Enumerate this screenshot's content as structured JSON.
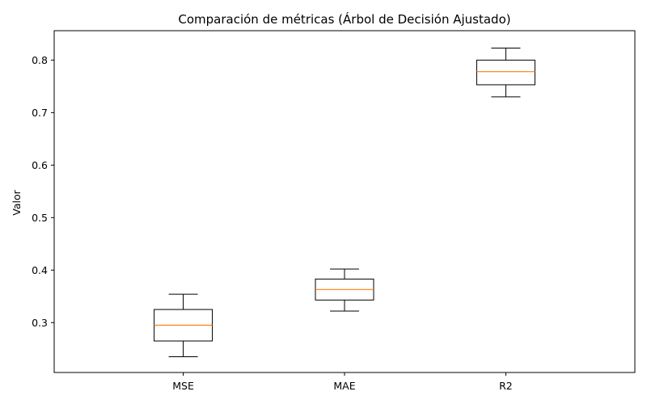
{
  "chart_data": {
    "type": "boxplot",
    "title": "Comparación de métricas (Árbol de Decisión Ajustado)",
    "xlabel": "",
    "ylabel": "Valor",
    "categories": [
      "MSE",
      "MAE",
      "R2"
    ],
    "boxes": [
      {
        "category": "MSE",
        "whisker_low": 0.235,
        "q1": 0.265,
        "median": 0.295,
        "q3": 0.325,
        "whisker_high": 0.354
      },
      {
        "category": "MAE",
        "whisker_low": 0.322,
        "q1": 0.343,
        "median": 0.363,
        "q3": 0.383,
        "whisker_high": 0.402
      },
      {
        "category": "R2",
        "whisker_low": 0.73,
        "q1": 0.753,
        "median": 0.778,
        "q3": 0.8,
        "whisker_high": 0.823
      }
    ],
    "ylim": [
      0.205,
      0.856
    ],
    "yticks": [
      0.3,
      0.4,
      0.5,
      0.6,
      0.7,
      0.8
    ],
    "ytick_labels": [
      "0.3",
      "0.4",
      "0.5",
      "0.6",
      "0.7",
      "0.8"
    ],
    "grid": false,
    "legend": "none",
    "colors": {
      "box": "#000000",
      "median": "#ff7f0e",
      "axes": "#000000",
      "background": "#ffffff"
    }
  }
}
